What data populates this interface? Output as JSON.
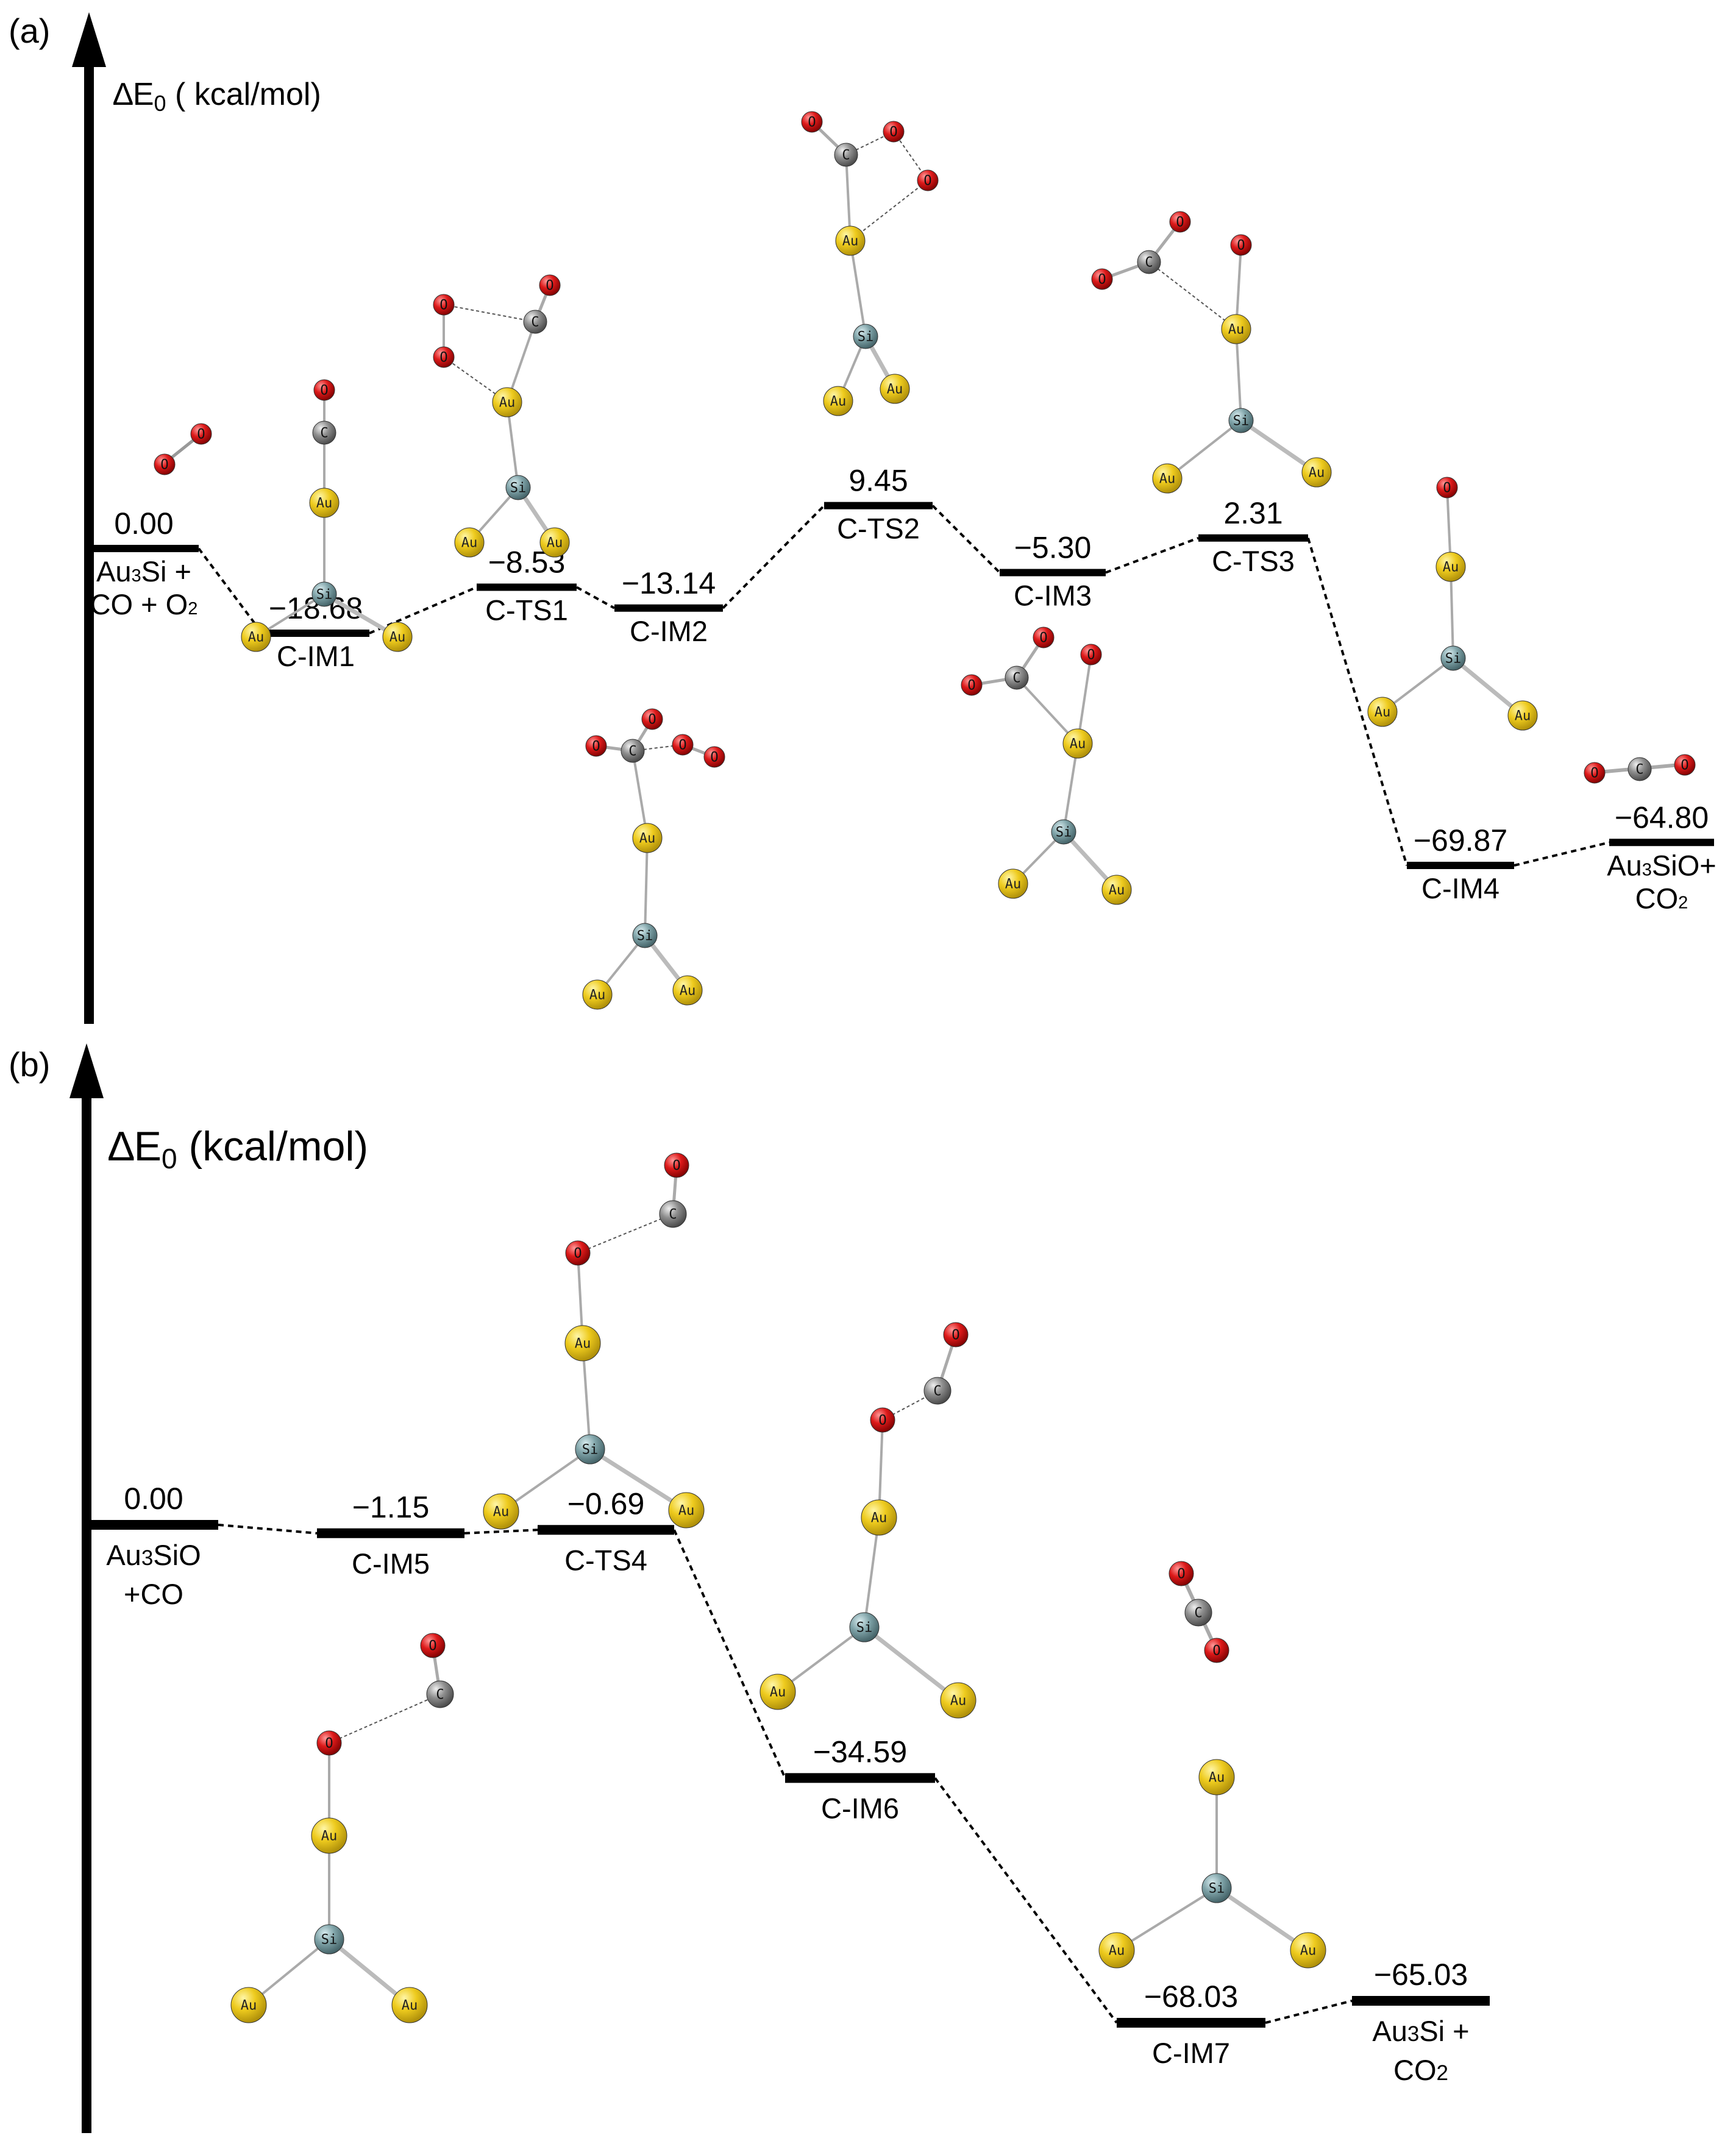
{
  "panel_a": {
    "letter": "(a)",
    "axis": {
      "delta": "∆E",
      "sub": "0",
      "unit": " ( kcal/mol)"
    },
    "levels": [
      {
        "id": "reactants-a",
        "value": "0.00",
        "label_lines": [
          [
            {
              "t": "Au"
            },
            {
              "t": "3",
              "sub": true
            },
            {
              "t": "Si +"
            }
          ],
          [
            {
              "t": "CO + O"
            },
            {
              "t": "2",
              "sub": true
            }
          ]
        ]
      },
      {
        "id": "c-im1",
        "value": "−18.68",
        "label_lines": [
          [
            {
              "t": "C-IM1"
            }
          ]
        ]
      },
      {
        "id": "c-ts1",
        "value": "−8.53",
        "label_lines": [
          [
            {
              "t": "C-TS1"
            }
          ]
        ]
      },
      {
        "id": "c-im2",
        "value": "−13.14",
        "label_lines": [
          [
            {
              "t": "C-IM2"
            }
          ]
        ]
      },
      {
        "id": "c-ts2",
        "value": "9.45",
        "label_lines": [
          [
            {
              "t": "C-TS2"
            }
          ]
        ]
      },
      {
        "id": "c-im3",
        "value": "−5.30",
        "label_lines": [
          [
            {
              "t": "C-IM3"
            }
          ]
        ]
      },
      {
        "id": "c-ts3",
        "value": "2.31",
        "label_lines": [
          [
            {
              "t": "C-TS3"
            }
          ]
        ]
      },
      {
        "id": "c-im4",
        "value": "−69.87",
        "label_lines": [
          [
            {
              "t": "C-IM4"
            }
          ]
        ]
      },
      {
        "id": "products-a",
        "value": "−64.80",
        "label_lines": [
          [
            {
              "t": "Au"
            },
            {
              "t": "3",
              "sub": true
            },
            {
              "t": "SiO+"
            }
          ],
          [
            {
              "t": "CO"
            },
            {
              "t": "2",
              "sub": true
            }
          ]
        ]
      }
    ]
  },
  "panel_b": {
    "letter": "(b)",
    "axis": {
      "delta": "∆E",
      "sub": "0",
      "unit": " (kcal/mol)"
    },
    "levels": [
      {
        "id": "reactants-b",
        "value": "0.00",
        "label_lines": [
          [
            {
              "t": "Au"
            },
            {
              "t": "3",
              "sub": true
            },
            {
              "t": "SiO"
            }
          ],
          [
            {
              "t": "+CO"
            }
          ]
        ]
      },
      {
        "id": "c-im5",
        "value": "−1.15",
        "label_lines": [
          [
            {
              "t": "C-IM5"
            }
          ]
        ]
      },
      {
        "id": "c-ts4",
        "value": "−0.69",
        "label_lines": [
          [
            {
              "t": "C-TS4"
            }
          ]
        ]
      },
      {
        "id": "c-im6",
        "value": "−34.59",
        "label_lines": [
          [
            {
              "t": "C-IM6"
            }
          ]
        ]
      },
      {
        "id": "c-im7",
        "value": "−68.03",
        "label_lines": [
          [
            {
              "t": "C-IM7"
            }
          ]
        ]
      },
      {
        "id": "products-b",
        "value": "−65.03",
        "label_lines": [
          [
            {
              "t": "Au"
            },
            {
              "t": "3",
              "sub": true
            },
            {
              "t": "Si +"
            }
          ],
          [
            {
              "t": "CO"
            },
            {
              "t": "2",
              "sub": true
            }
          ]
        ]
      }
    ]
  },
  "chart_data": [
    {
      "type": "energy-profile",
      "title": "(a)",
      "ylabel": "ΔE0 ( kcal/mol)",
      "categories": [
        "Au3Si + CO + O2",
        "C-IM1",
        "C-TS1",
        "C-IM2",
        "C-TS2",
        "C-IM3",
        "C-TS3",
        "C-IM4",
        "Au3SiO+ CO2"
      ],
      "values": [
        0.0,
        -18.68,
        -8.53,
        -13.14,
        9.45,
        -5.3,
        2.31,
        -69.87,
        -64.8
      ]
    },
    {
      "type": "energy-profile",
      "title": "(b)",
      "ylabel": "ΔE0 (kcal/mol)",
      "categories": [
        "Au3SiO +CO",
        "C-IM5",
        "C-TS4",
        "C-IM6",
        "C-IM7",
        "Au3Si + CO2"
      ],
      "values": [
        0.0,
        -1.15,
        -0.69,
        -34.59,
        -68.03,
        -65.03
      ]
    }
  ],
  "atom_symbols": {
    "Au": "Au",
    "Si": "Si",
    "C": "C",
    "O": "O"
  },
  "colors": {
    "Au": "#e8c21a",
    "Si": "#7a9aa0",
    "C": "#8c8c8c",
    "O": "#d91414",
    "bar": "#000000"
  }
}
